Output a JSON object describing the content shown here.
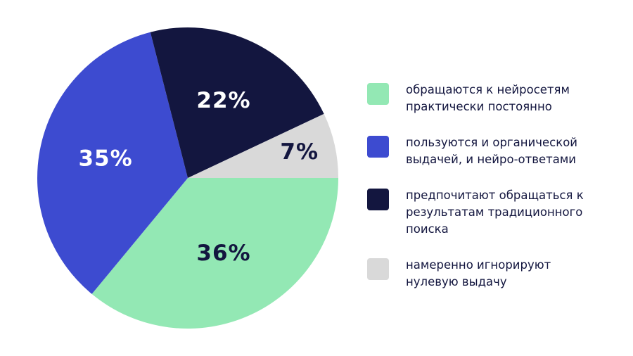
{
  "chart_data": {
    "type": "pie",
    "categories": [
      "обращаются к нейросетям практически постоянно",
      "пользуются и органической выдачей, и нейро-ответами",
      "предпочитают обращаться к результатам традиционного поиска",
      "намеренно игнорируют нулевую выдачу"
    ],
    "values": [
      36,
      35,
      22,
      7
    ],
    "value_labels": [
      "36%",
      "35%",
      "22%",
      "7%"
    ],
    "colors": [
      "#93e8b4",
      "#3d4bd0",
      "#13163f",
      "#d9d9d9"
    ],
    "legend": "right"
  }
}
